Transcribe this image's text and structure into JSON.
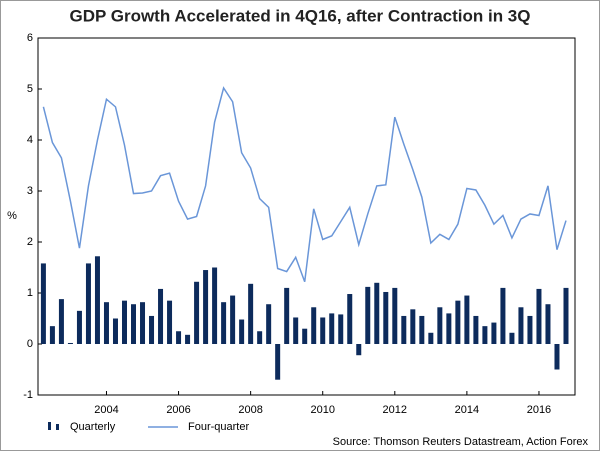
{
  "chart_data": {
    "type": "bar_line",
    "title": "GDP Growth Accelerated in 4Q16, after Contraction in 3Q",
    "y_label": "%",
    "source": "Source: Thomson Reuters Datastream, Action Forex",
    "x": [
      2002.25,
      2002.5,
      2002.75,
      2003,
      2003.25,
      2003.5,
      2003.75,
      2004,
      2004.25,
      2004.5,
      2004.75,
      2005,
      2005.25,
      2005.5,
      2005.75,
      2006,
      2006.25,
      2006.5,
      2006.75,
      2007,
      2007.25,
      2007.5,
      2007.75,
      2008,
      2008.25,
      2008.5,
      2008.75,
      2009,
      2009.25,
      2009.5,
      2009.75,
      2010,
      2010.25,
      2010.5,
      2010.75,
      2011,
      2011.25,
      2011.5,
      2011.75,
      2012,
      2012.25,
      2012.5,
      2012.75,
      2013,
      2013.25,
      2013.5,
      2013.75,
      2014,
      2014.25,
      2014.5,
      2014.75,
      2015,
      2015.25,
      2015.5,
      2015.75,
      2016,
      2016.25,
      2016.5,
      2016.75
    ],
    "series": [
      {
        "name": "Quarterly",
        "type": "bar",
        "color": "#0d2b5c",
        "values": [
          1.58,
          0.35,
          0.88,
          0.02,
          0.65,
          1.58,
          1.72,
          0.82,
          0.5,
          0.85,
          0.78,
          0.82,
          0.55,
          1.08,
          0.85,
          0.25,
          0.18,
          1.22,
          1.45,
          1.5,
          0.82,
          0.95,
          0.48,
          1.18,
          0.25,
          0.78,
          -0.7,
          1.1,
          0.52,
          0.3,
          0.72,
          0.52,
          0.6,
          0.58,
          0.98,
          -0.22,
          1.12,
          1.2,
          1.02,
          1.1,
          0.55,
          0.68,
          0.55,
          0.22,
          0.72,
          0.6,
          0.85,
          0.95,
          0.55,
          0.35,
          0.42,
          1.1,
          0.22,
          0.72,
          0.55,
          1.08,
          0.78,
          -0.5,
          1.1
        ]
      },
      {
        "name": "Four-quarter",
        "type": "line",
        "color": "#6a96d8",
        "values": [
          4.65,
          3.95,
          3.65,
          2.8,
          1.88,
          3.1,
          4.0,
          4.8,
          4.65,
          3.9,
          2.95,
          2.96,
          3.0,
          3.3,
          3.35,
          2.8,
          2.45,
          2.5,
          3.1,
          4.35,
          5.02,
          4.75,
          3.75,
          3.45,
          2.85,
          2.68,
          1.48,
          1.42,
          1.7,
          1.22,
          2.65,
          2.05,
          2.12,
          2.4,
          2.68,
          1.95,
          2.55,
          3.1,
          3.12,
          4.45,
          3.92,
          3.42,
          2.88,
          1.98,
          2.15,
          2.05,
          2.35,
          3.05,
          3.02,
          2.72,
          2.35,
          2.52,
          2.08,
          2.45,
          2.55,
          2.52,
          3.1,
          1.85,
          2.42
        ]
      }
    ],
    "xlim": [
      2002.1,
      2017.0
    ],
    "xticks": [
      2004,
      2006,
      2008,
      2010,
      2012,
      2014,
      2016
    ],
    "ylim": [
      -1,
      6
    ],
    "yticks": [
      -1,
      0,
      1,
      2,
      3,
      4,
      5,
      6
    ]
  }
}
